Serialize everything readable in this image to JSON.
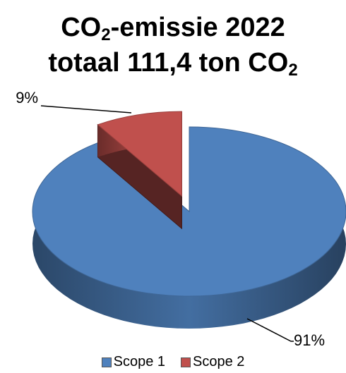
{
  "chart_data": {
    "type": "pie",
    "title_line1": {
      "pre": "CO",
      "sub": "2",
      "post": "-emissie 2022"
    },
    "title_line2": {
      "pre": "totaal 111,4 ton CO",
      "sub": "2"
    },
    "categories": [
      "Scope 1",
      "Scope 2"
    ],
    "values": [
      91,
      9
    ],
    "data_labels": [
      "91%",
      "9%"
    ],
    "colors": [
      "#4f81bd",
      "#c0504d"
    ],
    "exploded": "Scope 2",
    "three_d": true,
    "legend_position": "bottom"
  }
}
